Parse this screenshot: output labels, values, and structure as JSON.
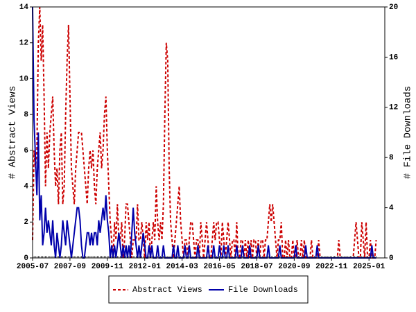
{
  "chart_data": {
    "type": "line",
    "x": [
      "2005-07",
      "2005-08",
      "2005-09",
      "2005-10",
      "2005-11",
      "2005-12",
      "2006-01",
      "2006-02",
      "2006-03",
      "2006-04",
      "2006-05",
      "2006-06",
      "2006-07",
      "2006-08",
      "2006-09",
      "2006-10",
      "2006-11",
      "2006-12",
      "2007-01",
      "2007-02",
      "2007-03",
      "2007-04",
      "2007-05",
      "2007-06",
      "2007-07",
      "2007-08",
      "2007-09",
      "2007-10",
      "2007-11",
      "2007-12",
      "2008-01",
      "2008-02",
      "2008-03",
      "2008-04",
      "2008-05",
      "2008-06",
      "2008-07",
      "2008-08",
      "2008-09",
      "2008-10",
      "2008-11",
      "2008-12",
      "2009-01",
      "2009-02",
      "2009-03",
      "2009-04",
      "2009-05",
      "2009-06",
      "2009-07",
      "2009-08",
      "2009-09",
      "2009-10",
      "2009-11",
      "2009-12",
      "2010-01",
      "2010-02",
      "2010-03",
      "2010-04",
      "2010-05",
      "2010-06",
      "2010-07",
      "2010-08",
      "2010-09",
      "2010-10",
      "2010-11",
      "2010-12",
      "2011-01",
      "2011-02",
      "2011-03",
      "2011-04",
      "2011-05",
      "2011-06",
      "2011-07",
      "2011-08",
      "2011-09",
      "2011-10",
      "2011-11",
      "2011-12",
      "2012-01",
      "2012-02",
      "2012-03",
      "2012-04",
      "2012-05",
      "2012-06",
      "2012-07",
      "2012-08",
      "2012-09",
      "2012-10",
      "2012-11",
      "2012-12",
      "2013-01",
      "2013-02",
      "2013-03",
      "2013-04",
      "2013-05",
      "2013-06",
      "2013-07",
      "2013-08",
      "2013-09",
      "2013-10",
      "2013-11",
      "2013-12",
      "2014-01",
      "2014-02",
      "2014-03",
      "2014-04",
      "2014-05",
      "2014-06",
      "2014-07",
      "2014-08",
      "2014-09",
      "2014-10",
      "2014-11",
      "2014-12",
      "2015-01",
      "2015-02",
      "2015-03",
      "2015-04",
      "2015-05",
      "2015-06",
      "2015-07",
      "2015-08",
      "2015-09",
      "2015-10",
      "2015-11",
      "2015-12",
      "2016-01",
      "2016-02",
      "2016-03",
      "2016-04",
      "2016-05",
      "2016-06",
      "2016-07",
      "2016-08",
      "2016-09",
      "2016-10",
      "2016-11",
      "2016-12",
      "2017-01",
      "2017-02",
      "2017-03",
      "2017-04",
      "2017-05",
      "2017-06",
      "2017-07",
      "2017-08",
      "2017-09",
      "2017-10",
      "2017-11",
      "2017-12",
      "2018-01",
      "2018-02",
      "2018-03",
      "2018-04",
      "2018-05",
      "2018-06",
      "2018-07",
      "2018-08",
      "2018-09",
      "2018-10",
      "2018-11",
      "2018-12",
      "2019-01",
      "2019-02",
      "2019-03",
      "2019-04",
      "2019-05",
      "2019-06",
      "2019-07",
      "2019-08",
      "2019-09",
      "2019-10",
      "2019-11",
      "2019-12",
      "2020-01",
      "2020-02",
      "2020-03",
      "2020-04",
      "2020-05",
      "2020-06",
      "2020-07",
      "2020-08",
      "2020-09",
      "2020-10",
      "2020-11",
      "2020-12",
      "2021-01",
      "2021-02",
      "2021-03",
      "2021-04",
      "2021-05",
      "2021-06",
      "2021-07",
      "2021-08",
      "2021-09",
      "2021-10",
      "2021-11",
      "2021-12",
      "2022-01",
      "2022-02",
      "2022-03",
      "2022-04",
      "2022-05",
      "2022-06",
      "2022-07",
      "2022-08",
      "2022-09",
      "2022-10",
      "2022-11",
      "2022-12",
      "2023-01",
      "2023-02",
      "2023-03",
      "2023-04",
      "2023-05",
      "2023-06",
      "2023-07",
      "2023-08",
      "2023-09",
      "2023-10",
      "2023-11",
      "2023-12",
      "2024-01",
      "2024-02",
      "2024-03",
      "2024-04",
      "2024-05",
      "2024-06",
      "2024-07",
      "2024-08",
      "2024-09",
      "2024-10",
      "2024-11",
      "2024-12",
      "2025-01",
      "2025-02",
      "2025-03",
      "2025-04",
      "2025-05",
      "2025-06"
    ],
    "series": [
      {
        "name": "Abstract Views",
        "color": "#cc0000",
        "dashed": true,
        "axis": "y",
        "values": [
          1,
          6,
          5,
          6,
          12,
          14,
          11,
          13,
          9,
          4,
          7,
          5,
          7,
          8,
          9,
          6,
          4,
          5,
          3,
          6,
          7,
          3,
          4,
          8,
          11,
          13,
          9,
          5,
          4,
          3,
          5,
          6,
          7,
          7,
          7,
          6,
          5,
          4,
          3,
          5,
          6,
          5,
          6,
          4,
          3,
          5,
          6,
          7,
          5,
          6,
          8,
          9,
          6,
          4,
          2,
          1,
          0,
          2,
          1,
          3,
          1,
          1,
          2,
          0,
          1,
          3,
          3,
          2,
          1,
          0,
          1,
          1,
          1,
          3,
          1,
          1,
          2,
          1,
          0,
          2,
          1,
          2,
          0,
          1,
          2,
          1,
          4,
          2,
          1,
          2,
          1,
          3,
          8,
          12,
          11,
          5,
          2,
          1,
          0,
          1,
          2,
          3,
          4,
          2,
          1,
          0,
          1,
          1,
          0,
          1,
          2,
          2,
          1,
          0,
          1,
          1,
          0,
          2,
          1,
          0,
          1,
          2,
          1,
          0,
          0,
          1,
          2,
          1,
          2,
          2,
          1,
          0,
          2,
          1,
          0,
          1,
          2,
          1,
          0,
          1,
          1,
          0,
          2,
          0,
          0,
          1,
          1,
          0,
          1,
          0,
          1,
          0,
          1,
          0,
          1,
          1,
          0,
          1,
          0,
          1,
          1,
          0,
          1,
          1,
          2,
          3,
          2,
          3,
          2,
          1,
          0,
          1,
          1,
          2,
          0,
          0,
          1,
          0,
          1,
          0,
          0,
          1,
          0,
          0,
          1,
          0,
          0,
          1,
          0,
          1,
          0,
          0,
          0,
          0,
          1,
          0,
          0,
          0,
          0,
          1,
          0,
          0,
          0,
          0,
          0,
          0,
          0,
          0,
          0,
          0,
          0,
          0,
          0,
          1,
          0,
          0,
          0,
          0,
          0,
          0,
          0,
          0,
          0,
          0,
          1,
          2,
          1,
          0,
          0,
          2,
          1,
          0,
          2,
          0,
          0,
          1,
          0,
          0,
          0,
          1
        ]
      },
      {
        "name": "File Downloads",
        "color": "#0000aa",
        "dashed": false,
        "axis": "y2",
        "values": [
          20,
          11,
          8,
          5,
          10,
          3,
          5,
          1,
          2,
          4,
          2,
          3,
          2,
          1,
          3,
          1,
          0,
          2,
          1,
          0,
          1,
          3,
          2,
          1,
          3,
          2,
          1,
          0,
          1,
          2,
          3,
          4,
          4,
          3,
          1,
          0,
          0,
          1,
          2,
          2,
          1,
          2,
          1,
          2,
          2,
          1,
          3,
          2,
          3,
          4,
          3,
          5,
          3,
          2,
          0,
          1,
          0,
          1,
          0,
          1,
          2,
          1,
          0,
          1,
          0,
          1,
          0,
          1,
          0,
          2,
          4,
          2,
          1,
          0,
          1,
          0,
          1,
          2,
          1,
          0,
          0,
          1,
          0,
          1,
          0,
          0,
          0,
          1,
          0,
          0,
          0,
          1,
          0,
          0,
          0,
          0,
          0,
          0,
          1,
          0,
          0,
          1,
          0,
          0,
          0,
          0,
          1,
          0,
          0,
          1,
          0,
          0,
          0,
          0,
          0,
          1,
          0,
          0,
          0,
          0,
          0,
          0,
          1,
          0,
          0,
          0,
          1,
          0,
          0,
          0,
          1,
          0,
          0,
          1,
          0,
          0,
          1,
          0,
          0,
          0,
          0,
          0,
          1,
          0,
          0,
          0,
          1,
          0,
          0,
          0,
          0,
          1,
          0,
          0,
          0,
          0,
          0,
          1,
          0,
          0,
          0,
          0,
          0,
          0,
          1,
          0,
          0,
          0,
          0,
          0,
          0,
          0,
          1,
          0,
          0,
          0,
          0,
          0,
          0,
          0,
          0,
          0,
          0,
          1,
          0,
          0,
          0,
          0,
          0,
          0,
          1,
          0,
          0,
          0,
          0,
          0,
          0,
          0,
          1,
          0,
          0,
          0,
          0,
          0,
          0,
          0,
          0,
          0,
          0,
          0,
          0,
          0,
          0,
          0,
          0,
          0,
          0,
          0,
          0,
          0,
          0,
          0,
          0,
          0,
          0,
          0,
          0,
          0,
          0,
          0,
          0,
          0,
          0,
          0,
          0,
          0,
          1,
          0,
          0,
          0
        ]
      }
    ],
    "xticks": [
      "2005-07",
      "2007-09",
      "2009-11",
      "2012-01",
      "2014-03",
      "2016-05",
      "2018-07",
      "2020-09",
      "2022-11",
      "2025-01"
    ],
    "y_label": "# Abstract Views",
    "y2_label": "# File Downloads",
    "ylim": [
      0,
      14
    ],
    "yticks": [
      0,
      2,
      4,
      6,
      8,
      10,
      12,
      14
    ],
    "y2lim": [
      0,
      20
    ],
    "y2ticks": [
      0,
      4,
      8,
      12,
      16,
      20
    ],
    "legend": "bottom"
  }
}
